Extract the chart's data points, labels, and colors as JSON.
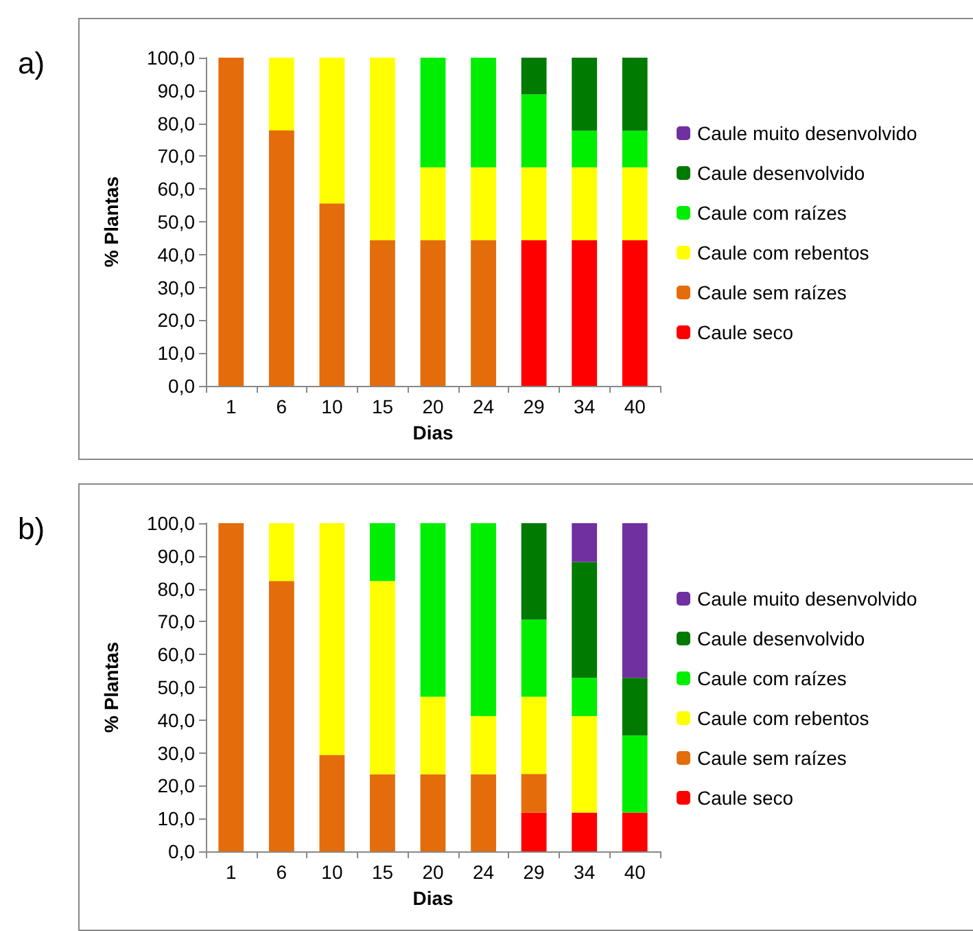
{
  "chart_data": [
    {
      "type": "bar",
      "title": "a)",
      "xlabel": "Dias",
      "ylabel": "% Plantas",
      "stacked": true,
      "legend": "right",
      "grid": false,
      "categories": [
        "1",
        "6",
        "10",
        "15",
        "20",
        "24",
        "29",
        "34",
        "40"
      ],
      "ylim": [
        0,
        100
      ],
      "yticks": [
        {
          "value": 0,
          "label": "0,0"
        },
        {
          "value": 10,
          "label": "10,0"
        },
        {
          "value": 20,
          "label": "20,0"
        },
        {
          "value": 30,
          "label": "30,0"
        },
        {
          "value": 40,
          "label": "40,0"
        },
        {
          "value": 50,
          "label": "50,0"
        },
        {
          "value": 60,
          "label": "60,0"
        },
        {
          "value": 70,
          "label": "70,0"
        },
        {
          "value": 80,
          "label": "80,0"
        },
        {
          "value": 90,
          "label": "90,0"
        },
        {
          "value": 100,
          "label": "100,0"
        }
      ],
      "series": [
        {
          "name": "Caule seco",
          "color": "#ff0000",
          "values": [
            null,
            null,
            null,
            null,
            null,
            null,
            44.4,
            44.4,
            44.4
          ]
        },
        {
          "name": "Caule sem raízes",
          "color": "#e46c0a",
          "values": [
            100,
            77.8,
            55.6,
            44.4,
            44.4,
            44.4,
            null,
            null,
            null
          ]
        },
        {
          "name": "Caule com rebentos",
          "color": "#ffff00",
          "values": [
            null,
            22.2,
            44.4,
            55.6,
            22.2,
            22.2,
            22.2,
            22.2,
            22.2
          ]
        },
        {
          "name": "Caule com raízes",
          "color": "#00ee00",
          "values": [
            null,
            null,
            null,
            null,
            33.4,
            33.4,
            22.2,
            11.1,
            11.1
          ]
        },
        {
          "name": "Caule desenvolvido",
          "color": "#007a00",
          "values": [
            null,
            null,
            null,
            null,
            null,
            null,
            11.2,
            22.3,
            22.3
          ]
        },
        {
          "name": "Caule muito desenvolvido",
          "color": "#7030a0",
          "values": [
            null,
            null,
            null,
            null,
            null,
            null,
            null,
            null,
            null
          ]
        }
      ]
    },
    {
      "type": "bar",
      "title": "b)",
      "xlabel": "Dias",
      "ylabel": "% Plantas",
      "stacked": true,
      "legend": "right",
      "grid": false,
      "categories": [
        "1",
        "6",
        "10",
        "15",
        "20",
        "24",
        "29",
        "34",
        "40"
      ],
      "ylim": [
        0,
        100
      ],
      "yticks": [
        {
          "value": 0,
          "label": "0,0"
        },
        {
          "value": 10,
          "label": "10,0"
        },
        {
          "value": 20,
          "label": "20,0"
        },
        {
          "value": 30,
          "label": "30,0"
        },
        {
          "value": 40,
          "label": "40,0"
        },
        {
          "value": 50,
          "label": "50,0"
        },
        {
          "value": 60,
          "label": "60,0"
        },
        {
          "value": 70,
          "label": "70,0"
        },
        {
          "value": 80,
          "label": "80,0"
        },
        {
          "value": 90,
          "label": "90,0"
        },
        {
          "value": 100,
          "label": "100,0"
        }
      ],
      "series": [
        {
          "name": "Caule seco",
          "color": "#ff0000",
          "values": [
            null,
            null,
            null,
            null,
            null,
            null,
            11.8,
            11.8,
            11.8
          ]
        },
        {
          "name": "Caule sem raízes",
          "color": "#e46c0a",
          "values": [
            100,
            82.4,
            29.4,
            23.5,
            23.5,
            23.5,
            11.8,
            null,
            null
          ]
        },
        {
          "name": "Caule com rebentos",
          "color": "#ffff00",
          "values": [
            null,
            17.6,
            70.6,
            58.9,
            23.6,
            17.7,
            23.5,
            29.4,
            null
          ]
        },
        {
          "name": "Caule com raízes",
          "color": "#00ee00",
          "values": [
            null,
            null,
            null,
            17.6,
            52.9,
            58.8,
            23.5,
            11.7,
            23.5
          ]
        },
        {
          "name": "Caule desenvolvido",
          "color": "#007a00",
          "values": [
            null,
            null,
            null,
            null,
            null,
            null,
            29.4,
            35.3,
            17.6
          ]
        },
        {
          "name": "Caule muito desenvolvido",
          "color": "#7030a0",
          "values": [
            null,
            null,
            null,
            null,
            null,
            null,
            null,
            11.8,
            47.1
          ]
        }
      ]
    }
  ]
}
